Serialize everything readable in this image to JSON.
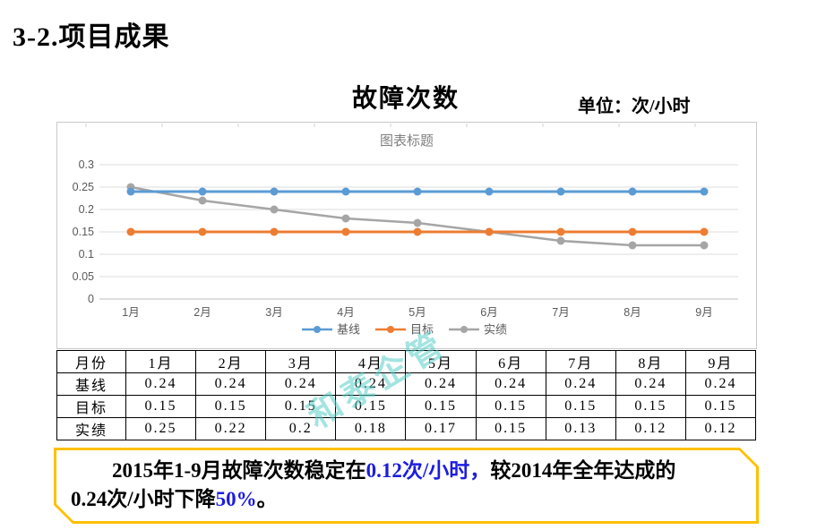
{
  "page": {
    "heading": "3-2.项目成果"
  },
  "chart_header": {
    "title": "故障次数",
    "unit": "单位：次/小时"
  },
  "chart_data": {
    "type": "line",
    "title": "图表标题",
    "categories": [
      "1月",
      "2月",
      "3月",
      "4月",
      "5月",
      "6月",
      "7月",
      "8月",
      "9月"
    ],
    "series": [
      {
        "name": "基线",
        "color": "#5B9BD5",
        "values": [
          0.24,
          0.24,
          0.24,
          0.24,
          0.24,
          0.24,
          0.24,
          0.24,
          0.24
        ]
      },
      {
        "name": "目标",
        "color": "#ED7D31",
        "values": [
          0.15,
          0.15,
          0.15,
          0.15,
          0.15,
          0.15,
          0.15,
          0.15,
          0.15
        ]
      },
      {
        "name": "实绩",
        "color": "#A5A5A5",
        "values": [
          0.25,
          0.22,
          0.2,
          0.18,
          0.17,
          0.15,
          0.13,
          0.12,
          0.12
        ]
      }
    ],
    "ylim": [
      0,
      0.3
    ],
    "yticks": [
      0,
      0.05,
      0.1,
      0.15,
      0.2,
      0.25,
      0.3
    ],
    "grid": true,
    "legend_position": "bottom",
    "gridline_color": "#DCDCDC",
    "axis_label_color": "#595959"
  },
  "table": {
    "header_label": "月份",
    "columns": [
      "1月",
      "2月",
      "3月",
      "4月",
      "5月",
      "6月",
      "7月",
      "8月",
      "9月"
    ],
    "rows": [
      {
        "label": "基线",
        "values": [
          "0.24",
          "0.24",
          "0.24",
          "0.24",
          "0.24",
          "0.24",
          "0.24",
          "0.24",
          "0.24"
        ]
      },
      {
        "label": "目标",
        "values": [
          "0.15",
          "0.15",
          "0.15",
          "0.15",
          "0.15",
          "0.15",
          "0.15",
          "0.15",
          "0.15"
        ]
      },
      {
        "label": "实绩",
        "values": [
          "0.25",
          "0.22",
          "0.2",
          "0.18",
          "0.17",
          "0.15",
          "0.13",
          "0.12",
          "0.12"
        ]
      }
    ]
  },
  "watermark": {
    "text": "和泰企管"
  },
  "summary": {
    "border_color": "#FFC000",
    "accent_color": "#1C1CE0",
    "lines": [
      [
        {
          "text": "2015年1-9月故障次数稳定在",
          "accent": false
        },
        {
          "text": "0.12次/小时，",
          "accent": true
        },
        {
          "text": "较2014年全年达成的",
          "accent": false
        }
      ],
      [
        {
          "text": "0.24次/小时下降",
          "accent": false
        },
        {
          "text": "50%",
          "accent": true
        },
        {
          "text": "。",
          "accent": false
        }
      ]
    ]
  }
}
